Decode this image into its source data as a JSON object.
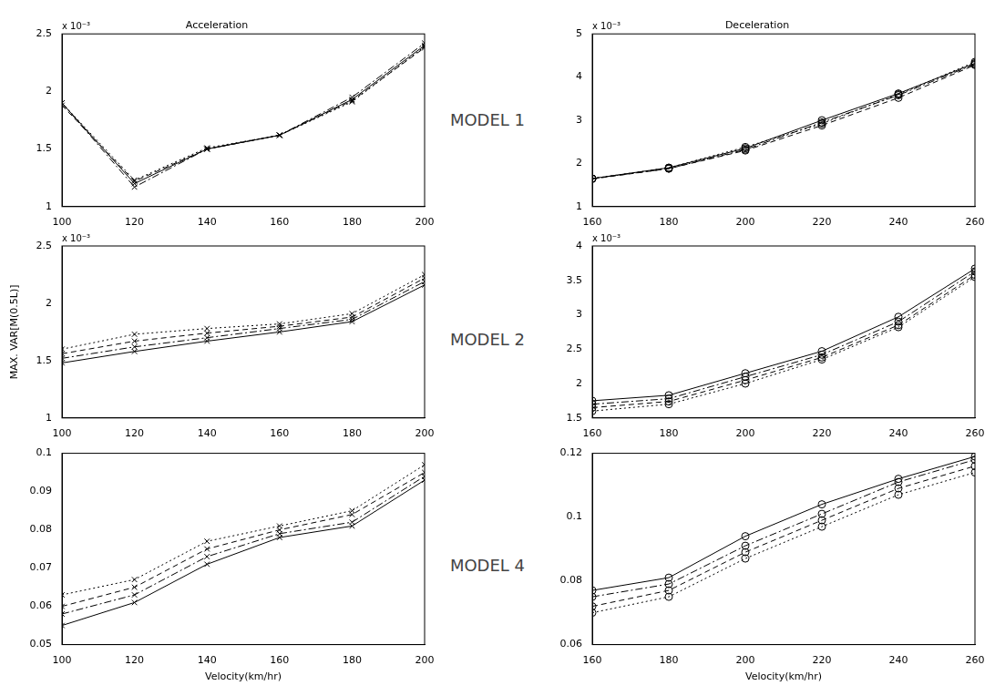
{
  "chart_data": [
    {
      "type": "line",
      "title": "Acceleration",
      "annotation": "MODEL 1",
      "y_multiplier": "x 10⁻³",
      "x": [
        100,
        120,
        140,
        160,
        180,
        200
      ],
      "xlim": [
        100,
        200
      ],
      "xticks": [
        100,
        120,
        140,
        160,
        180,
        200
      ],
      "ylim": [
        1,
        2.5
      ],
      "yticks": [
        1,
        1.5,
        2,
        2.5
      ],
      "grid": false,
      "series": [
        {
          "color": "#000000",
          "line_style": "solid",
          "marker": "x",
          "values": [
            1.9,
            1.2,
            1.5,
            1.62,
            1.93,
            2.4
          ]
        },
        {
          "color": "#000000",
          "line_style": "dashdot",
          "marker": "x",
          "values": [
            1.9,
            1.17,
            1.5,
            1.62,
            1.95,
            2.42
          ]
        },
        {
          "color": "#000000",
          "line_style": "dashed",
          "marker": "x",
          "values": [
            1.88,
            1.22,
            1.5,
            1.62,
            1.92,
            2.38
          ]
        },
        {
          "color": "#000000",
          "line_style": "dotted",
          "marker": "x",
          "values": [
            1.9,
            1.23,
            1.51,
            1.62,
            1.91,
            2.39
          ]
        }
      ]
    },
    {
      "type": "line",
      "title": "Deceleration",
      "y_multiplier": "x 10⁻³",
      "x": [
        160,
        180,
        200,
        220,
        240,
        260
      ],
      "xlim": [
        160,
        260
      ],
      "xticks": [
        160,
        180,
        200,
        220,
        240,
        260
      ],
      "ylim": [
        1,
        5
      ],
      "yticks": [
        1,
        2,
        3,
        4,
        5
      ],
      "grid": false,
      "series": [
        {
          "color": "#000000",
          "line_style": "solid",
          "marker": "circle",
          "values": [
            1.65,
            1.9,
            2.35,
            3.0,
            3.62,
            4.32
          ]
        },
        {
          "color": "#000000",
          "line_style": "dashdot",
          "marker": "circle",
          "values": [
            1.65,
            1.88,
            2.32,
            2.95,
            3.58,
            4.3
          ]
        },
        {
          "color": "#000000",
          "line_style": "dashed",
          "marker": "circle",
          "values": [
            1.64,
            1.88,
            2.3,
            2.88,
            3.52,
            4.28
          ]
        },
        {
          "color": "#000000",
          "line_style": "dotted",
          "marker": "circle",
          "values": [
            1.65,
            1.9,
            2.38,
            2.92,
            3.6,
            4.35
          ]
        }
      ]
    },
    {
      "type": "line",
      "annotation": "MODEL 2",
      "y_multiplier": "x 10⁻³",
      "ylabel": "MAX. VAR[M(0.5L)]",
      "x": [
        100,
        120,
        140,
        160,
        180,
        200
      ],
      "xlim": [
        100,
        200
      ],
      "xticks": [
        100,
        120,
        140,
        160,
        180,
        200
      ],
      "ylim": [
        1,
        2.5
      ],
      "yticks": [
        1,
        1.5,
        2,
        2.5
      ],
      "grid": false,
      "series": [
        {
          "color": "#000000",
          "line_style": "solid",
          "marker": "x",
          "values": [
            1.48,
            1.58,
            1.67,
            1.75,
            1.84,
            2.16
          ]
        },
        {
          "color": "#000000",
          "line_style": "dashdot",
          "marker": "x",
          "values": [
            1.52,
            1.62,
            1.7,
            1.78,
            1.86,
            2.19
          ]
        },
        {
          "color": "#000000",
          "line_style": "dashed",
          "marker": "x",
          "values": [
            1.56,
            1.67,
            1.74,
            1.8,
            1.88,
            2.22
          ]
        },
        {
          "color": "#000000",
          "line_style": "dotted",
          "marker": "x",
          "values": [
            1.6,
            1.73,
            1.78,
            1.82,
            1.91,
            2.25
          ]
        }
      ]
    },
    {
      "type": "line",
      "y_multiplier": "x 10⁻³",
      "x": [
        160,
        180,
        200,
        220,
        240,
        260
      ],
      "xlim": [
        160,
        260
      ],
      "xticks": [
        160,
        180,
        200,
        220,
        240,
        260
      ],
      "ylim": [
        1.5,
        4
      ],
      "yticks": [
        1.5,
        2,
        2.5,
        3,
        3.5,
        4
      ],
      "grid": false,
      "series": [
        {
          "color": "#000000",
          "line_style": "solid",
          "marker": "circle",
          "values": [
            1.75,
            1.83,
            2.15,
            2.47,
            2.97,
            3.67
          ]
        },
        {
          "color": "#000000",
          "line_style": "dashdot",
          "marker": "circle",
          "values": [
            1.7,
            1.78,
            2.1,
            2.42,
            2.9,
            3.63
          ]
        },
        {
          "color": "#000000",
          "line_style": "dashed",
          "marker": "circle",
          "values": [
            1.65,
            1.74,
            2.05,
            2.38,
            2.85,
            3.58
          ]
        },
        {
          "color": "#000000",
          "line_style": "dotted",
          "marker": "circle",
          "values": [
            1.6,
            1.7,
            2.0,
            2.35,
            2.82,
            3.55
          ]
        }
      ]
    },
    {
      "type": "line",
      "annotation": "MODEL 4",
      "xlabel": "Velocity(km/hr)",
      "x": [
        100,
        120,
        140,
        160,
        180,
        200
      ],
      "xlim": [
        100,
        200
      ],
      "xticks": [
        100,
        120,
        140,
        160,
        180,
        200
      ],
      "ylim": [
        0.05,
        0.1
      ],
      "yticks": [
        0.05,
        0.06,
        0.07,
        0.08,
        0.09,
        0.1
      ],
      "grid": false,
      "series": [
        {
          "color": "#000000",
          "line_style": "solid",
          "marker": "x",
          "values": [
            0.055,
            0.061,
            0.071,
            0.078,
            0.081,
            0.093
          ]
        },
        {
          "color": "#000000",
          "line_style": "dashdot",
          "marker": "x",
          "values": [
            0.058,
            0.063,
            0.073,
            0.079,
            0.082,
            0.094
          ]
        },
        {
          "color": "#000000",
          "line_style": "dashed",
          "marker": "x",
          "values": [
            0.06,
            0.065,
            0.075,
            0.08,
            0.084,
            0.095
          ]
        },
        {
          "color": "#000000",
          "line_style": "dotted",
          "marker": "x",
          "values": [
            0.063,
            0.067,
            0.077,
            0.081,
            0.085,
            0.097
          ]
        }
      ]
    },
    {
      "type": "line",
      "xlabel": "Velocity(km/hr)",
      "x": [
        160,
        180,
        200,
        220,
        240,
        260
      ],
      "xlim": [
        160,
        260
      ],
      "xticks": [
        160,
        180,
        200,
        220,
        240,
        260
      ],
      "ylim": [
        0.06,
        0.12
      ],
      "yticks": [
        0.06,
        0.08,
        0.1,
        0.12
      ],
      "grid": false,
      "series": [
        {
          "color": "#000000",
          "line_style": "solid",
          "marker": "circle",
          "values": [
            0.077,
            0.081,
            0.094,
            0.104,
            0.112,
            0.119
          ]
        },
        {
          "color": "#000000",
          "line_style": "dashdot",
          "marker": "circle",
          "values": [
            0.075,
            0.079,
            0.091,
            0.101,
            0.111,
            0.118
          ]
        },
        {
          "color": "#000000",
          "line_style": "dashed",
          "marker": "circle",
          "values": [
            0.072,
            0.077,
            0.089,
            0.099,
            0.109,
            0.116
          ]
        },
        {
          "color": "#000000",
          "line_style": "dotted",
          "marker": "circle",
          "values": [
            0.07,
            0.075,
            0.087,
            0.097,
            0.107,
            0.114
          ]
        }
      ]
    }
  ]
}
